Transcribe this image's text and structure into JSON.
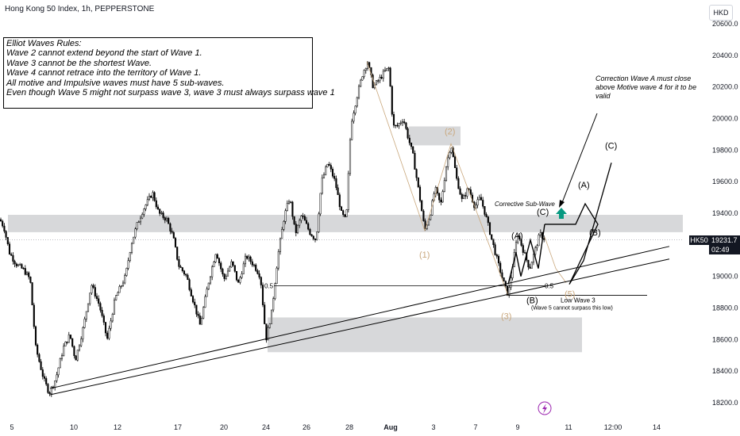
{
  "header": {
    "title": "Hong Kong 50 Index, 1h, PEPPERSTONE",
    "currency": "HKD"
  },
  "price_tag": {
    "symbol": "HK50",
    "price": "19231.7",
    "countdown": "02:49"
  },
  "rules_box": {
    "lines": [
      "Elliot Waves Rules:",
      "Wave 2 cannot extend beyond the start of Wave 1.",
      "Wave 3 cannot be the shortest Wave.",
      "Wave 4 cannot retrace into the territory of Wave 1.",
      "All motive and Impulsive waves must have 5 sub-waves.",
      "Even though Wave 5 might not surpass wave 3, wave 3 must always surpass wave 1"
    ]
  },
  "annotations": {
    "correction_note": "Correction Wave A must close above Motive wave 4 for it to be valid",
    "corrective_sub_wave": "Corrective Sub-Wave",
    "low_wave_3": "Low Wave 3",
    "low_wave_3_sub": "(Wave 5 cannot surpass this low)",
    "fib_left": "0.5",
    "fib_right": "0.5"
  },
  "wave_labels": {
    "w1": "(1)",
    "w2": "(2)",
    "w3": "(3)",
    "w5": "(5)",
    "subA": "(A)",
    "subB": "(B)",
    "subC": "(C)",
    "projA": "(A)",
    "projB": "(B)",
    "projC": "(C)"
  },
  "colors": {
    "candle": "#000000",
    "zone": "#d7d8da",
    "wave_label_tan": "#c9a77c",
    "arrow_up": "#089981",
    "axis_text": "#131722",
    "event_icon": "#9c27b0"
  },
  "icons": {
    "event": "lightning-icon",
    "arrow": "arrow-up-icon"
  },
  "chart_data": {
    "type": "candlestick",
    "title": "Hong Kong 50 Index, 1h, PEPPERSTONE",
    "ylim": [
      18150,
      20700
    ],
    "y_ticks": [
      "20600.0",
      "20400.0",
      "20200.0",
      "20000.0",
      "19800.0",
      "19600.0",
      "19400.0",
      "19200.0",
      "19000.0",
      "18800.0",
      "18600.0",
      "18400.0",
      "18200.0"
    ],
    "x_ticks": [
      "5",
      "10",
      "12",
      "17",
      "20",
      "24",
      "26",
      "28",
      "Aug",
      "3",
      "7",
      "9",
      "11",
      "12:00",
      "14"
    ],
    "current_price": 19231.7,
    "path_points": [
      [
        0,
        19360
      ],
      [
        5,
        19310
      ],
      [
        12,
        19150
      ],
      [
        20,
        19080
      ],
      [
        30,
        19040
      ],
      [
        38,
        18980
      ],
      [
        45,
        18550
      ],
      [
        55,
        18350
      ],
      [
        62,
        18260
      ],
      [
        70,
        18350
      ],
      [
        80,
        18550
      ],
      [
        88,
        18630
      ],
      [
        95,
        18470
      ],
      [
        105,
        18680
      ],
      [
        115,
        18950
      ],
      [
        125,
        18820
      ],
      [
        135,
        18600
      ],
      [
        145,
        18860
      ],
      [
        158,
        19000
      ],
      [
        165,
        19200
      ],
      [
        172,
        19320
      ],
      [
        180,
        19420
      ],
      [
        192,
        19530
      ],
      [
        200,
        19400
      ],
      [
        210,
        19360
      ],
      [
        218,
        19250
      ],
      [
        225,
        19070
      ],
      [
        235,
        19000
      ],
      [
        242,
        18870
      ],
      [
        252,
        18690
      ],
      [
        262,
        18950
      ],
      [
        272,
        19160
      ],
      [
        282,
        18980
      ],
      [
        292,
        19090
      ],
      [
        300,
        18950
      ],
      [
        310,
        19130
      ],
      [
        320,
        19070
      ],
      [
        328,
        19000
      ],
      [
        335,
        18600
      ],
      [
        342,
        18770
      ],
      [
        350,
        19130
      ],
      [
        358,
        19380
      ],
      [
        365,
        19500
      ],
      [
        372,
        19270
      ],
      [
        380,
        19390
      ],
      [
        390,
        19280
      ],
      [
        398,
        19230
      ],
      [
        405,
        19600
      ],
      [
        413,
        19720
      ],
      [
        422,
        19600
      ],
      [
        430,
        19400
      ],
      [
        436,
        19350
      ],
      [
        442,
        19970
      ],
      [
        450,
        20150
      ],
      [
        457,
        20290
      ],
      [
        463,
        20360
      ],
      [
        470,
        20200
      ],
      [
        478,
        20250
      ],
      [
        485,
        20300
      ],
      [
        490,
        20320
      ],
      [
        495,
        19950
      ],
      [
        500,
        19950
      ],
      [
        508,
        20000
      ],
      [
        514,
        19880
      ],
      [
        520,
        19770
      ],
      [
        528,
        19520
      ],
      [
        535,
        19290
      ],
      [
        542,
        19400
      ],
      [
        548,
        19560
      ],
      [
        555,
        19450
      ],
      [
        562,
        19700
      ],
      [
        568,
        19840
      ],
      [
        575,
        19620
      ],
      [
        582,
        19480
      ],
      [
        590,
        19560
      ],
      [
        598,
        19440
      ],
      [
        605,
        19500
      ],
      [
        612,
        19380
      ],
      [
        620,
        19220
      ],
      [
        628,
        19070
      ],
      [
        635,
        18950
      ],
      [
        640,
        18880
      ],
      [
        645,
        19050
      ],
      [
        652,
        19270
      ],
      [
        660,
        19150
      ],
      [
        667,
        19050
      ],
      [
        673,
        19150
      ],
      [
        680,
        19270
      ],
      [
        687,
        19230
      ]
    ],
    "wave_points": {
      "w1": [
        535,
        19290
      ],
      "w2": [
        568,
        19840
      ],
      "w3": [
        640,
        18880
      ],
      "w5": [
        700,
        18970
      ]
    },
    "zones": [
      {
        "from_x": 10,
        "to_x": 860,
        "y_top": 19390,
        "y_bottom": 19280
      },
      {
        "from_x": 515,
        "to_x": 580,
        "y_top": 19950,
        "y_bottom": 19830
      },
      {
        "from_x": 337,
        "to_x": 733,
        "y_top": 18740,
        "y_bottom": 18520
      }
    ],
    "trendlines": [
      {
        "from": [
          63,
          18250
        ],
        "to": [
          843,
          19110
        ]
      },
      {
        "from": [
          63,
          18290
        ],
        "to": [
          843,
          19190
        ]
      }
    ],
    "levels": [
      {
        "label": "0.5",
        "price": 18940,
        "from_x": 345,
        "to_x": 690
      },
      {
        "label": "Low Wave 3",
        "price": 18880,
        "from_x": 640,
        "to_x": 815
      }
    ],
    "projection_path": [
      [
        686,
        19330
      ],
      [
        725,
        19330
      ],
      [
        737,
        19460
      ],
      [
        753,
        19330
      ],
      [
        717,
        18950
      ],
      [
        735,
        19100
      ],
      [
        770,
        19720
      ]
    ]
  }
}
